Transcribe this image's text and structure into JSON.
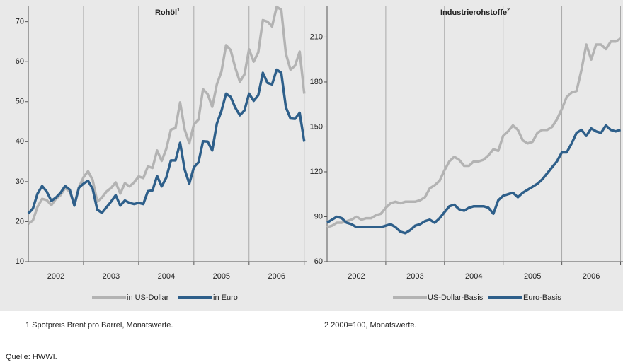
{
  "chart_data": [
    {
      "type": "line",
      "title": "Rohöl",
      "title_note": "1",
      "categories": [
        null,
        null,
        null,
        null,
        null,
        null,
        "2002",
        null,
        null,
        null,
        null,
        null,
        null,
        null,
        null,
        null,
        null,
        null,
        "2003",
        null,
        null,
        null,
        null,
        null,
        null,
        null,
        null,
        null,
        null,
        null,
        "2004",
        null,
        null,
        null,
        null,
        null,
        null,
        null,
        null,
        null,
        null,
        null,
        "2005",
        null,
        null,
        null,
        null,
        null,
        null,
        null,
        null,
        null,
        null,
        null,
        "2006",
        null,
        null,
        null,
        null,
        null,
        null
      ],
      "series": [
        {
          "name": "in US-Dollar",
          "color": "#b3b3b3",
          "values": [
            19.5,
            20.3,
            23.7,
            25.7,
            25.4,
            24.1,
            25.7,
            26.6,
            28.4,
            27.5,
            24.2,
            28.6,
            31.1,
            32.6,
            30.4,
            25.0,
            26.0,
            27.5,
            28.4,
            29.8,
            27.0,
            29.6,
            28.8,
            29.8,
            31.3,
            30.9,
            33.8,
            33.4,
            37.8,
            35.2,
            38.2,
            43.0,
            43.4,
            49.8,
            43.0,
            39.6,
            44.3,
            45.5,
            53.1,
            51.9,
            48.7,
            54.3,
            57.5,
            64.1,
            62.9,
            58.5,
            55.0,
            56.8,
            63.1,
            60.0,
            62.3,
            70.4,
            70.0,
            68.8,
            73.7,
            73.0,
            62.0,
            58.0,
            59.0,
            62.5,
            52.0
          ]
        },
        {
          "name": "in Euro",
          "color": "#2e5f8a",
          "values": [
            22.0,
            23.3,
            27.0,
            28.9,
            27.5,
            25.2,
            26.0,
            27.2,
            28.9,
            28.0,
            24.0,
            28.5,
            29.5,
            30.2,
            28.2,
            23.0,
            22.2,
            23.6,
            25.0,
            26.6,
            24.0,
            25.3,
            24.7,
            24.4,
            24.7,
            24.4,
            27.6,
            27.8,
            31.4,
            28.8,
            31.0,
            35.3,
            35.3,
            39.7,
            33.0,
            29.5,
            33.6,
            34.8,
            40.1,
            40.0,
            37.8,
            44.5,
            47.7,
            52.0,
            51.2,
            48.5,
            46.6,
            47.8,
            52.0,
            50.2,
            51.6,
            57.2,
            54.7,
            54.3,
            58.0,
            57.2,
            48.6,
            45.8,
            45.7,
            47.2,
            40.0
          ]
        }
      ],
      "ylim": [
        10,
        74
      ],
      "yticks": [
        10,
        20,
        30,
        40,
        50,
        60,
        70
      ],
      "note": "1 Spotpreis Brent pro Barrel, Monatswerte."
    },
    {
      "type": "line",
      "title": "Industrierohstoffe",
      "title_note": "2",
      "categories": [
        null,
        null,
        null,
        null,
        null,
        null,
        "2002",
        null,
        null,
        null,
        null,
        null,
        null,
        null,
        null,
        null,
        null,
        null,
        "2003",
        null,
        null,
        null,
        null,
        null,
        null,
        null,
        null,
        null,
        null,
        null,
        "2004",
        null,
        null,
        null,
        null,
        null,
        null,
        null,
        null,
        null,
        null,
        null,
        "2005",
        null,
        null,
        null,
        null,
        null,
        null,
        null,
        null,
        null,
        null,
        null,
        "2006",
        null,
        null,
        null,
        null,
        null,
        null
      ],
      "series": [
        {
          "name": "US-Dollar-Basis",
          "color": "#b3b3b3",
          "values": [
            83,
            84,
            86,
            86,
            87,
            88,
            90,
            88,
            89,
            89,
            91,
            92,
            96,
            99,
            100,
            99,
            100,
            100,
            100,
            101,
            103,
            109,
            111,
            114,
            121,
            127,
            130,
            128,
            124,
            124,
            127,
            127,
            128,
            131,
            135,
            134,
            144,
            147,
            151,
            148,
            141,
            139,
            140,
            146,
            148,
            148,
            150,
            155,
            162,
            170,
            173,
            174,
            188,
            205,
            195,
            205,
            205,
            202,
            207,
            207,
            209
          ]
        },
        {
          "name": "Euro-Basis",
          "color": "#2e5f8a",
          "values": [
            86,
            88,
            90,
            89,
            86,
            85,
            83,
            83,
            83,
            83,
            83,
            83,
            84,
            85,
            83,
            80,
            79,
            81,
            84,
            85,
            87,
            88,
            86,
            89,
            93,
            97,
            98,
            95,
            94,
            96,
            97,
            97,
            97,
            96,
            92,
            101,
            104,
            105,
            106,
            103,
            106,
            108,
            110,
            112,
            115,
            119,
            123,
            127,
            133,
            133,
            139,
            146,
            148,
            144,
            149,
            147,
            146,
            151,
            148,
            147,
            148
          ]
        }
      ],
      "ylim": [
        60,
        231
      ],
      "yticks": [
        60,
        90,
        120,
        150,
        180,
        210
      ],
      "note": "2 2000=100, Monatswerte."
    }
  ],
  "source": "Quelle: HWWI."
}
